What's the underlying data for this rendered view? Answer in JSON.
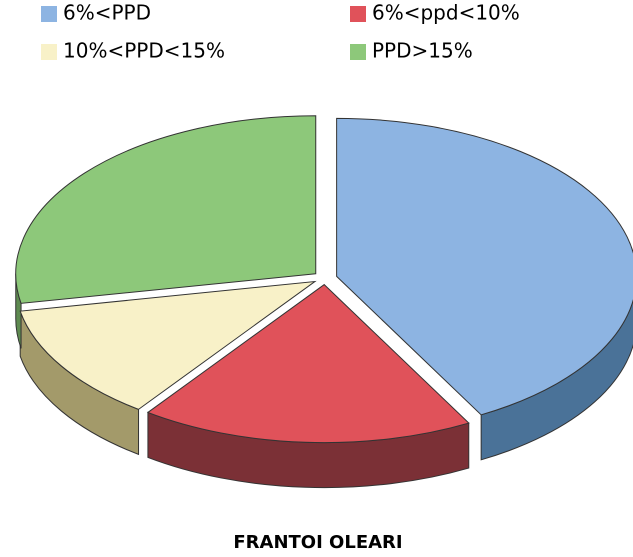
{
  "chart_data": {
    "type": "pie",
    "title": "FRANTOI OLEARI",
    "categories": [
      "6%<PPD",
      "6%<ppd<10%",
      "10%<PPD<15%",
      "PPD>15%"
    ],
    "values": [
      42,
      18,
      12,
      28
    ],
    "colors": [
      "#8db4e2",
      "#e0525a",
      "#f8f1c8",
      "#8dc87a"
    ],
    "side_colors": [
      "#4a7298",
      "#7b3036",
      "#a39a6a",
      "#5e8a50"
    ]
  }
}
